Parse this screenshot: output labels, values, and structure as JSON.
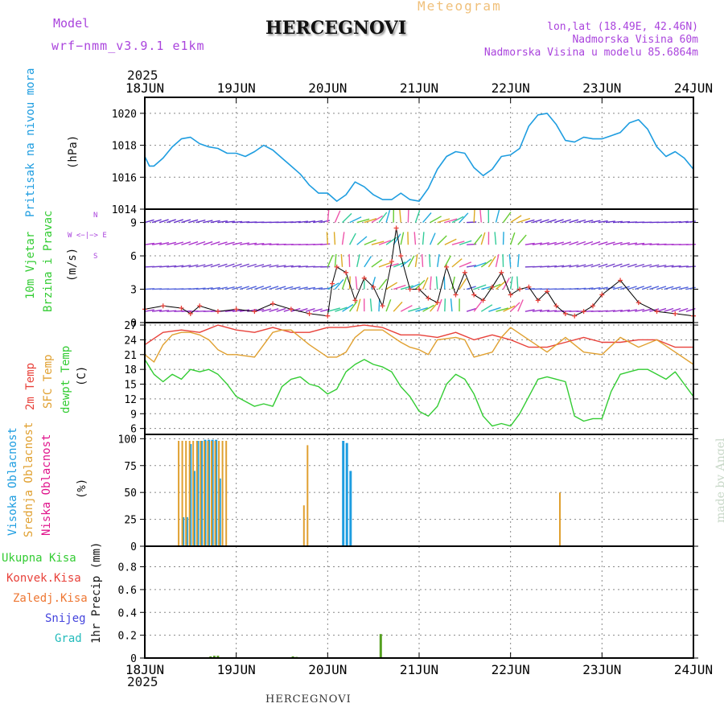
{
  "header": {
    "model_label": "Model",
    "model_name": "wrf−nmm_v3.9.1  e1km",
    "title": "HERCEGNOVI",
    "meteogram_label": "Meteogram",
    "lonlat": "lon,lat (18.49E, 42.46N)",
    "altitude": "Nadmorska Visina 60m",
    "model_altitude": "Nadmorska Visina u modelu 85.6864m",
    "year_top": "2025",
    "year_bottom": "2025",
    "footer_station": "HERCEGNOVI",
    "credit": "made by Angel"
  },
  "colors": {
    "pressure": "#1e9de0",
    "temp2m": "#e8413a",
    "sfc": "#e0a030",
    "dewpt": "#33cc33",
    "high_cloud": "#1e9de0",
    "mid_cloud": "#e0a030",
    "low_cloud": "#e0158c",
    "total_precip": "#55a020",
    "purple": "#aa44dd"
  },
  "labels": {
    "pressure_title": "Pritisak na nivou mora",
    "pressure_unit": "(hPa)",
    "wind_title1": "10m Vjetar",
    "wind_title2": "Brzina i Pravac",
    "wind_unit": "(m/s)",
    "compass": "W  <−|−>  E",
    "compass_n": "N",
    "compass_s": "S",
    "temp_2m": "2m Temp",
    "temp_sfc": "SFC Temp",
    "temp_dew": "dewpt Temp",
    "temp_unit": "(C)",
    "cloud_high": "Visoka Oblacnost",
    "cloud_mid": "Srednja Oblacnost",
    "cloud_low": "Niska Oblacnost",
    "cloud_unit": "(%)",
    "precip_total": "Ukupna Kisa",
    "precip_conv": "Konvek.Kisa",
    "precip_frozen": "Zaledj.Kisa",
    "precip_snow": "Snijeg",
    "precip_hail": "Grad",
    "precip_unit": "1hr Precip (mm)"
  },
  "chart_data": [
    {
      "type": "line",
      "panel": "pressure",
      "x_tick_labels": [
        "18JUN",
        "19JUN",
        "20JUN",
        "21JUN",
        "22JUN",
        "23JUN",
        "24JUN"
      ],
      "xlim_days": [
        0,
        6
      ],
      "ylim": [
        1014,
        1021
      ],
      "y_ticks": [
        1014,
        1016,
        1018,
        1020
      ],
      "ylabel": "(hPa)",
      "series": [
        {
          "name": "Pritisak na nivou mora",
          "x": [
            0,
            0.05,
            0.1,
            0.2,
            0.3,
            0.4,
            0.5,
            0.6,
            0.7,
            0.8,
            0.9,
            1.0,
            1.1,
            1.2,
            1.3,
            1.4,
            1.5,
            1.6,
            1.7,
            1.8,
            1.9,
            2.0,
            2.1,
            2.2,
            2.3,
            2.4,
            2.5,
            2.6,
            2.7,
            2.8,
            2.9,
            3.0,
            3.1,
            3.2,
            3.3,
            3.4,
            3.5,
            3.6,
            3.7,
            3.8,
            3.9,
            4.0,
            4.1,
            4.2,
            4.3,
            4.4,
            4.5,
            4.6,
            4.7,
            4.8,
            4.9,
            5.0,
            5.1,
            5.2,
            5.3,
            5.4,
            5.5,
            5.6,
            5.7,
            5.8,
            5.9,
            6.0
          ],
          "y": [
            1017.3,
            1016.7,
            1016.7,
            1017.2,
            1017.9,
            1018.4,
            1018.5,
            1018.1,
            1017.9,
            1017.8,
            1017.5,
            1017.5,
            1017.3,
            1017.6,
            1018.0,
            1017.7,
            1017.2,
            1016.7,
            1016.2,
            1015.5,
            1015.0,
            1015.0,
            1014.5,
            1014.9,
            1015.7,
            1015.4,
            1014.9,
            1014.6,
            1014.6,
            1015.0,
            1014.6,
            1014.5,
            1015.3,
            1016.5,
            1017.3,
            1017.6,
            1017.5,
            1016.6,
            1016.1,
            1016.5,
            1017.3,
            1017.4,
            1017.8,
            1019.2,
            1019.9,
            1020.0,
            1019.3,
            1018.3,
            1018.2,
            1018.5,
            1018.4,
            1018.4,
            1018.6,
            1018.8,
            1019.4,
            1019.6,
            1019.0,
            1017.9,
            1017.3,
            1017.6,
            1017.2,
            1016.5
          ]
        }
      ]
    },
    {
      "type": "line",
      "panel": "wind",
      "ylim": [
        0,
        10.2
      ],
      "y_ticks": [
        0,
        3,
        6,
        9
      ],
      "ylabel": "(m/s)",
      "series": [
        {
          "name": "10m Vjetar",
          "x": [
            0,
            0.2,
            0.4,
            0.5,
            0.6,
            0.8,
            1.0,
            1.2,
            1.4,
            1.6,
            1.8,
            2.0,
            2.05,
            2.1,
            2.2,
            2.3,
            2.4,
            2.5,
            2.6,
            2.7,
            2.75,
            2.8,
            2.9,
            3.0,
            3.1,
            3.2,
            3.3,
            3.4,
            3.5,
            3.6,
            3.7,
            3.8,
            3.9,
            4.0,
            4.1,
            4.2,
            4.3,
            4.4,
            4.5,
            4.6,
            4.7,
            4.8,
            4.9,
            5.0,
            5.2,
            5.4,
            5.6,
            5.8,
            6.0
          ],
          "y": [
            1.2,
            1.5,
            1.3,
            0.8,
            1.5,
            1.0,
            1.2,
            1.0,
            1.7,
            1.2,
            0.8,
            0.6,
            3.5,
            5.0,
            4.5,
            2.0,
            4.0,
            3.2,
            1.5,
            5.5,
            8.5,
            6.0,
            3.0,
            3.0,
            2.2,
            1.8,
            5.0,
            2.5,
            4.5,
            2.5,
            2.0,
            3.2,
            4.5,
            2.5,
            3.0,
            3.2,
            2.0,
            2.8,
            1.5,
            0.8,
            0.6,
            1.0,
            1.5,
            2.5,
            3.8,
            1.8,
            1.0,
            0.8,
            0.6
          ]
        }
      ]
    },
    {
      "type": "line",
      "panel": "temperature",
      "ylim": [
        4.8,
        27.5
      ],
      "y_ticks": [
        6,
        9,
        12,
        15,
        18,
        21,
        24,
        27
      ],
      "ylabel": "(C)",
      "series": [
        {
          "name": "2m Temp",
          "x": [
            0,
            0.2,
            0.4,
            0.6,
            0.8,
            1.0,
            1.2,
            1.4,
            1.6,
            1.8,
            2.0,
            2.2,
            2.4,
            2.6,
            2.8,
            3.0,
            3.2,
            3.4,
            3.6,
            3.8,
            4.0,
            4.2,
            4.4,
            4.6,
            4.8,
            5.0,
            5.2,
            5.4,
            5.6,
            5.8,
            6.0
          ],
          "y": [
            23.0,
            25.5,
            26.0,
            25.5,
            27.0,
            26.0,
            25.5,
            26.5,
            25.5,
            25.5,
            26.5,
            26.5,
            27.0,
            26.5,
            25.0,
            25.0,
            24.5,
            25.5,
            24.0,
            25.0,
            24.0,
            22.5,
            22.5,
            23.5,
            24.5,
            23.5,
            23.5,
            24.0,
            24.0,
            22.5,
            22.5
          ]
        },
        {
          "name": "SFC Temp",
          "x": [
            0,
            0.1,
            0.2,
            0.3,
            0.4,
            0.5,
            0.6,
            0.7,
            0.8,
            0.9,
            1.0,
            1.2,
            1.3,
            1.4,
            1.5,
            1.6,
            1.8,
            2.0,
            2.1,
            2.2,
            2.3,
            2.4,
            2.6,
            2.8,
            2.9,
            3.0,
            3.1,
            3.2,
            3.4,
            3.5,
            3.6,
            3.8,
            3.9,
            4.0,
            4.2,
            4.4,
            4.6,
            4.8,
            5.0,
            5.2,
            5.4,
            5.6,
            5.8,
            6.0
          ],
          "y": [
            21.0,
            19.5,
            23.0,
            25.0,
            25.5,
            25.5,
            25.0,
            24.0,
            22.0,
            21.0,
            21.0,
            20.5,
            23.0,
            25.5,
            26.0,
            26.0,
            23.0,
            20.5,
            20.5,
            21.5,
            24.5,
            26.0,
            26.0,
            23.5,
            22.5,
            22.0,
            21.0,
            24.0,
            24.5,
            24.0,
            20.5,
            21.5,
            24.5,
            26.5,
            24.0,
            21.5,
            24.5,
            21.5,
            21.0,
            24.5,
            22.5,
            24.0,
            21.5,
            19.0
          ]
        },
        {
          "name": "dewpt Temp",
          "x": [
            0,
            0.1,
            0.2,
            0.3,
            0.4,
            0.5,
            0.6,
            0.7,
            0.8,
            0.9,
            1.0,
            1.1,
            1.2,
            1.3,
            1.4,
            1.5,
            1.6,
            1.7,
            1.8,
            1.9,
            2.0,
            2.1,
            2.2,
            2.3,
            2.4,
            2.5,
            2.6,
            2.7,
            2.8,
            2.9,
            3.0,
            3.1,
            3.2,
            3.3,
            3.4,
            3.5,
            3.6,
            3.7,
            3.8,
            3.9,
            4.0,
            4.1,
            4.2,
            4.3,
            4.4,
            4.5,
            4.6,
            4.7,
            4.8,
            4.9,
            5.0,
            5.1,
            5.2,
            5.3,
            5.4,
            5.5,
            5.6,
            5.7,
            5.8,
            5.9,
            6.0
          ],
          "y": [
            20.0,
            17.0,
            15.5,
            17.0,
            16.0,
            18.0,
            17.5,
            18.0,
            17.0,
            15.0,
            12.5,
            11.5,
            10.5,
            11.0,
            10.5,
            14.5,
            16.0,
            16.5,
            15.0,
            14.5,
            13.0,
            14.0,
            17.5,
            19.0,
            20.0,
            19.0,
            18.5,
            17.5,
            14.5,
            12.5,
            9.5,
            8.5,
            10.5,
            15.0,
            17.0,
            16.0,
            13.0,
            8.5,
            6.5,
            7.0,
            6.5,
            9.0,
            12.5,
            16.0,
            16.5,
            16.0,
            15.5,
            8.5,
            7.5,
            8.0,
            8.0,
            13.5,
            17.0,
            17.5,
            18.0,
            18.0,
            17.0,
            16.0,
            17.5,
            15.0,
            12.5
          ]
        }
      ]
    },
    {
      "type": "bar",
      "panel": "cloud",
      "ylim": [
        0,
        104
      ],
      "y_ticks": [
        0,
        25,
        50,
        75,
        100
      ],
      "ylabel": "(%)",
      "series": [
        {
          "name": "Visoka Oblacnost",
          "x": [
            0.42,
            0.46,
            0.5,
            0.54,
            0.58,
            0.62,
            0.66,
            0.7,
            0.74,
            0.78,
            0.82,
            2.17,
            2.21,
            2.25
          ],
          "y": [
            27,
            27,
            95,
            70,
            98,
            98,
            99,
            99,
            99,
            99,
            63,
            98,
            96,
            70
          ]
        },
        {
          "name": "Srednja Oblacnost",
          "x": [
            0.37,
            0.41,
            0.45,
            0.49,
            0.53,
            0.57,
            0.61,
            0.65,
            0.69,
            0.73,
            0.77,
            0.81,
            0.85,
            0.89,
            1.74,
            1.78,
            4.54
          ],
          "y": [
            98,
            98,
            98,
            98,
            98,
            98,
            98,
            98,
            98,
            98,
            98,
            98,
            98,
            98,
            38,
            94,
            50
          ]
        },
        {
          "name": "Niska Oblacnost",
          "x": [],
          "y": []
        }
      ]
    },
    {
      "type": "bar",
      "panel": "precip",
      "ylim": [
        0,
        0.98
      ],
      "y_ticks": [
        0,
        0.2,
        0.4,
        0.6,
        0.8
      ],
      "ylabel": "1hr Precip (mm)",
      "series": [
        {
          "name": "Ukupna Kisa",
          "x": [
            0.72,
            0.76,
            0.8,
            1.62,
            1.66,
            2.58
          ],
          "y": [
            0.015,
            0.02,
            0.02,
            0.015,
            0.01,
            0.21
          ]
        },
        {
          "name": "Konvek.Kisa",
          "x": [],
          "y": []
        },
        {
          "name": "Zaledj.Kisa",
          "x": [],
          "y": []
        },
        {
          "name": "Snijeg",
          "x": [],
          "y": []
        },
        {
          "name": "Grad",
          "x": [],
          "y": []
        }
      ]
    }
  ]
}
